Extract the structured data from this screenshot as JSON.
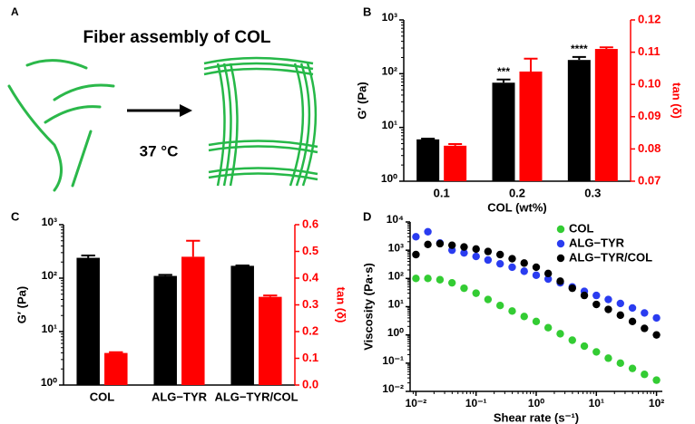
{
  "panel_a": {
    "panel": "A",
    "title": "Fiber assembly of COL",
    "condition": "37 °C"
  },
  "chart_data": [
    {
      "type": "bar",
      "panel": "B",
      "categories": [
        "0.1",
        "0.2",
        "0.3"
      ],
      "xlabel": "COL (wt%)",
      "ylabel": "G′ (Pa)",
      "y2label": "tan (δ)",
      "ylog": true,
      "ylim": [
        1,
        1000
      ],
      "yticks": [
        {
          "value": 1,
          "label": "10⁰"
        },
        {
          "value": 10,
          "label": "10¹"
        },
        {
          "value": 100,
          "label": "10²"
        },
        {
          "value": 1000,
          "label": "10³"
        }
      ],
      "y2lim": [
        0.07,
        0.12
      ],
      "y2ticks": [
        0.07,
        0.08,
        0.09,
        {
          "value": 0.1,
          "label": "0.10"
        },
        0.11,
        0.12
      ],
      "annotations": [
        null,
        "***",
        "****"
      ],
      "series": [
        {
          "color": "#000000",
          "values": [
            6,
            68,
            180
          ],
          "errors": [
            0.2,
            10,
            25
          ]
        },
        {
          "color": "#ff0000",
          "axis": "y2",
          "values": [
            0.081,
            0.104,
            0.111
          ],
          "errors": [
            0.0005,
            0.004,
            0.0005
          ]
        }
      ]
    },
    {
      "type": "bar",
      "panel": "C",
      "categories": [
        "COL",
        "ALG−TYR",
        "ALG−TYR/COL"
      ],
      "ylabel": "G′ (Pa)",
      "y2label": "tan (δ)",
      "ylog": true,
      "ylim": [
        1,
        1000
      ],
      "yticks": [
        {
          "value": 1,
          "label": "10⁰"
        },
        {
          "value": 10,
          "label": "10¹"
        },
        {
          "value": 100,
          "label": "10²"
        },
        {
          "value": 1000,
          "label": "10³"
        }
      ],
      "y2lim": [
        0,
        0.6
      ],
      "y2ticks": [
        {
          "value": 0,
          "label": "0.0"
        },
        0.1,
        0.2,
        0.3,
        0.4,
        0.5,
        0.6
      ],
      "series": [
        {
          "color": "#000000",
          "values": [
            240,
            110,
            170
          ],
          "errors": [
            25,
            5,
            3
          ]
        },
        {
          "color": "#ff0000",
          "axis": "y2",
          "values": [
            0.12,
            0.48,
            0.33
          ],
          "errors": [
            0.003,
            0.06,
            0.005
          ]
        }
      ]
    },
    {
      "type": "scatter",
      "panel": "D",
      "xlabel": "Shear rate (s⁻¹)",
      "ylabel": "Viscosity (Pa·s)",
      "xlog": true,
      "ylog": true,
      "xlim": [
        0.008,
        125
      ],
      "ylim": [
        0.01,
        10000
      ],
      "legend": "top-right",
      "xticks": [
        {
          "value": 0.01,
          "label": "10⁻²"
        },
        {
          "value": 0.1,
          "label": "10⁻¹"
        },
        {
          "value": 1,
          "label": "10⁰"
        },
        {
          "value": 10,
          "label": "10¹"
        },
        {
          "value": 100,
          "label": "10²"
        }
      ],
      "yticks": [
        {
          "value": 0.01,
          "label": "10⁻²"
        },
        {
          "value": 0.1,
          "label": "10⁻¹"
        },
        {
          "value": 1,
          "label": "10⁰"
        },
        {
          "value": 10,
          "label": "10¹"
        },
        {
          "value": 100,
          "label": "10²"
        },
        {
          "value": 1000,
          "label": "10³"
        },
        {
          "value": 10000,
          "label": "10⁴"
        }
      ],
      "x": [
        0.01,
        0.0158,
        0.0251,
        0.0398,
        0.0631,
        0.1,
        0.158,
        0.251,
        0.398,
        0.631,
        1,
        1.58,
        2.51,
        3.98,
        6.31,
        10,
        15.8,
        25.1,
        39.8,
        63.1,
        100
      ],
      "series": [
        {
          "name": "COL",
          "color": "#33cc33",
          "values": [
            100,
            100,
            90,
            70,
            45,
            30,
            18,
            11,
            7,
            4.5,
            3,
            1.8,
            1.1,
            0.65,
            0.4,
            0.25,
            0.15,
            0.1,
            0.065,
            0.04,
            0.025
          ]
        },
        {
          "name": "ALG−TYR",
          "color": "#2a3cf0",
          "values": [
            3000,
            4500,
            1800,
            1000,
            800,
            600,
            450,
            330,
            250,
            180,
            130,
            95,
            70,
            50,
            35,
            25,
            18,
            13,
            9,
            6,
            4
          ]
        },
        {
          "name": "ALG−TYR/COL",
          "color": "#000000",
          "values": [
            700,
            1600,
            1700,
            1500,
            1300,
            1100,
            900,
            700,
            500,
            350,
            250,
            150,
            80,
            45,
            25,
            12,
            8,
            5,
            3,
            1.7,
            1
          ]
        }
      ]
    }
  ]
}
